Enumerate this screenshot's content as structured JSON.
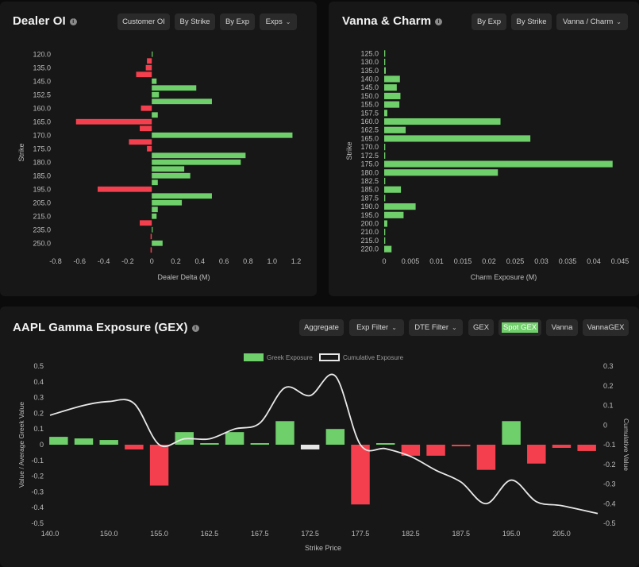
{
  "panels": {
    "dealer_oi": {
      "title": "Dealer OI",
      "buttons": {
        "customer_oi": "Customer OI",
        "by_strike": "By Strike",
        "by_exp": "By Exp",
        "exps": "Exps"
      }
    },
    "vanna_charm": {
      "title": "Vanna & Charm",
      "buttons": {
        "by_exp": "By Exp",
        "by_strike": "By Strike",
        "mode": "Vanna / Charm"
      }
    },
    "gex": {
      "title": "AAPL Gamma Exposure (GEX)",
      "buttons": {
        "aggregate": "Aggregate",
        "exp_filter": "Exp Filter",
        "dte_filter": "DTE Filter",
        "gex": "GEX",
        "spot_gex": "Spot GEX",
        "vanna": "Vanna",
        "vannagex": "VannaGEX"
      }
    }
  },
  "colors": {
    "positive": "#6fcf6a",
    "negative": "#f4404e",
    "neutral": "#e6e6e6",
    "line": "#e8e8e8"
  },
  "chart_data": [
    {
      "type": "bar",
      "orientation": "horizontal",
      "ylabel": "Strike",
      "xlabel": "Dealer Delta (M)",
      "xlim": [
        -0.8,
        1.2
      ],
      "xticks": [
        -0.8,
        -0.6,
        -0.4,
        -0.2,
        0,
        0.2,
        0.4,
        0.6,
        0.8,
        1.0,
        1.2
      ],
      "ytick_labels": [
        "120.0",
        "135.0",
        "145.0",
        "152.5",
        "160.0",
        "165.0",
        "170.0",
        "175.0",
        "180.0",
        "185.0",
        "195.0",
        "205.0",
        "215.0",
        "235.0",
        "250.0"
      ],
      "categories": [
        "120.0",
        "130.0",
        "135.0",
        "140.0",
        "145.0",
        "150.0",
        "152.5",
        "155.0",
        "160.0",
        "162.5",
        "165.0",
        "167.5",
        "170.0",
        "172.5",
        "175.0",
        "177.5",
        "180.0",
        "182.5",
        "185.0",
        "190.0",
        "195.0",
        "200.0",
        "205.0",
        "210.0",
        "215.0",
        "230.0",
        "235.0",
        "240.0",
        "250.0",
        "260.0"
      ],
      "values": [
        0.005,
        -0.04,
        -0.05,
        -0.13,
        0.04,
        0.37,
        0.06,
        0.5,
        -0.09,
        0.05,
        -0.63,
        -0.1,
        1.17,
        -0.19,
        -0.04,
        0.78,
        0.74,
        0.27,
        0.32,
        0.05,
        -0.45,
        0.5,
        0.25,
        0.05,
        0.04,
        -0.1,
        0.005,
        -0.01,
        0.09,
        -0.01
      ]
    },
    {
      "type": "bar",
      "orientation": "horizontal",
      "ylabel": "Strike",
      "xlabel": "Charm Exposure (M)",
      "xlim": [
        0,
        0.045
      ],
      "xticks": [
        0,
        0.005,
        0.01,
        0.015,
        0.02,
        0.025,
        0.03,
        0.035,
        0.04,
        0.045
      ],
      "categories": [
        "125.0",
        "130.0",
        "135.0",
        "140.0",
        "145.0",
        "150.0",
        "155.0",
        "157.5",
        "160.0",
        "162.5",
        "165.0",
        "170.0",
        "172.5",
        "175.0",
        "180.0",
        "182.5",
        "185.0",
        "187.5",
        "190.0",
        "195.0",
        "200.0",
        "210.0",
        "215.0",
        "220.0"
      ],
      "values": [
        0.0002,
        0.0002,
        0.0003,
        0.003,
        0.0024,
        0.0031,
        0.0029,
        0.0006,
        0.0222,
        0.0041,
        0.0279,
        0.0002,
        0.0002,
        0.0436,
        0.0217,
        0.0002,
        0.0032,
        0.0002,
        0.006,
        0.0037,
        0.0006,
        0.0002,
        0.0002,
        0.0014
      ]
    },
    {
      "type": "bar",
      "xlabel": "Strike Price",
      "ylabel": "Value / Average Greek Value",
      "y2label": "Cumulative Value",
      "ylim": [
        -0.5,
        0.5
      ],
      "y2lim": [
        -0.5,
        0.3
      ],
      "yticks": [
        -0.5,
        -0.4,
        -0.3,
        -0.2,
        -0.1,
        0,
        0.1,
        0.2,
        0.3,
        0.4,
        0.5
      ],
      "y2ticks": [
        -0.5,
        -0.4,
        -0.3,
        -0.2,
        -0.1,
        0,
        0.1,
        0.2,
        0.3
      ],
      "xtick_labels": [
        "140.0",
        "150.0",
        "155.0",
        "162.5",
        "167.5",
        "172.5",
        "177.5",
        "182.5",
        "187.5",
        "195.0",
        "205.0"
      ],
      "legend": [
        "Greek Exposure",
        "Cumulative Exposure"
      ],
      "legend_position": "top",
      "series": [
        {
          "name": "Greek Exposure",
          "type": "bar",
          "values": [
            0.05,
            0.04,
            0.03,
            -0.03,
            -0.26,
            0.08,
            0.01,
            0.08,
            0.01,
            0.15,
            -0.03,
            0.1,
            -0.38,
            0.01,
            -0.07,
            -0.07,
            -0.01,
            -0.16,
            0.15,
            -0.12,
            -0.02,
            -0.04
          ]
        },
        {
          "name": "Cumulative Exposure",
          "type": "line",
          "values": [
            0.05,
            0.1,
            0.12,
            0.11,
            -0.1,
            -0.07,
            -0.07,
            -0.02,
            0.01,
            0.19,
            0.15,
            0.25,
            -0.1,
            -0.12,
            -0.16,
            -0.23,
            -0.29,
            -0.4,
            -0.28,
            -0.39,
            -0.41,
            -0.45
          ]
        }
      ]
    }
  ]
}
